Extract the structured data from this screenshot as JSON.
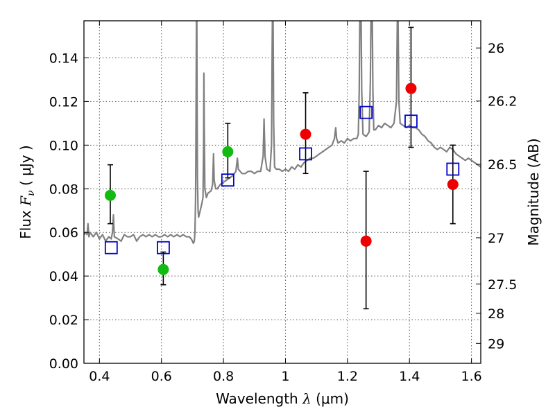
{
  "chart_data": {
    "type": "scatter",
    "xlabel": "Wavelength  λ (μm)",
    "ylabel": "Flux  F_ν  ( μJy )",
    "ylabel_right": "Magnitude (AB)",
    "xlim": [
      0.35,
      1.63
    ],
    "ylim": [
      0.0,
      0.157
    ],
    "grid": true,
    "x_ticks": [
      {
        "value": 0.4,
        "label": "0.4"
      },
      {
        "value": 0.6,
        "label": "0.6"
      },
      {
        "value": 0.8,
        "label": "0.8"
      },
      {
        "value": 1.0,
        "label": "1"
      },
      {
        "value": 1.2,
        "label": "1.2"
      },
      {
        "value": 1.4,
        "label": "1.4"
      },
      {
        "value": 1.6,
        "label": "1.6"
      }
    ],
    "y_ticks": [
      {
        "value": 0.0,
        "label": "0.00"
      },
      {
        "value": 0.02,
        "label": "0.02"
      },
      {
        "value": 0.04,
        "label": "0.04"
      },
      {
        "value": 0.06,
        "label": "0.06"
      },
      {
        "value": 0.08,
        "label": "0.08"
      },
      {
        "value": 0.1,
        "label": "0.10"
      },
      {
        "value": 0.12,
        "label": "0.12"
      },
      {
        "value": 0.14,
        "label": "0.14"
      }
    ],
    "right_ticks": [
      {
        "mag": 26,
        "label": "26"
      },
      {
        "mag": 26.2,
        "label": "26.2"
      },
      {
        "mag": 26.5,
        "label": "26.5"
      },
      {
        "mag": 27,
        "label": "27"
      },
      {
        "mag": 27.5,
        "label": "27.5"
      },
      {
        "mag": 28,
        "label": "28"
      },
      {
        "mag": 29,
        "label": "29"
      }
    ],
    "colors": {
      "spectrum": "#808080",
      "green": "#11bb11",
      "red": "#ee0000",
      "model": "#0000cc",
      "errorbar": "#000000",
      "grid": "#555555"
    },
    "points_green": [
      {
        "x": 0.435,
        "y": 0.077,
        "err_low": 0.064,
        "err_high": 0.091
      },
      {
        "x": 0.606,
        "y": 0.043,
        "err_low": 0.036,
        "err_high": 0.051
      },
      {
        "x": 0.814,
        "y": 0.097,
        "err_low": 0.085,
        "err_high": 0.11
      }
    ],
    "points_red": [
      {
        "x": 1.065,
        "y": 0.105,
        "err_low": 0.087,
        "err_high": 0.124
      },
      {
        "x": 1.26,
        "y": 0.056,
        "err_low": 0.025,
        "err_high": 0.088
      },
      {
        "x": 1.405,
        "y": 0.126,
        "err_low": 0.099,
        "err_high": 0.154
      },
      {
        "x": 1.54,
        "y": 0.082,
        "err_low": 0.064,
        "err_high": 0.1
      }
    ],
    "points_model": [
      {
        "x": 0.438,
        "y": 0.053
      },
      {
        "x": 0.606,
        "y": 0.053
      },
      {
        "x": 0.814,
        "y": 0.084
      },
      {
        "x": 1.065,
        "y": 0.096
      },
      {
        "x": 1.26,
        "y": 0.115
      },
      {
        "x": 1.405,
        "y": 0.111
      },
      {
        "x": 1.54,
        "y": 0.089
      }
    ],
    "spectrum": [
      [
        0.35,
        0.059
      ],
      [
        0.355,
        0.06
      ],
      [
        0.36,
        0.059
      ],
      [
        0.363,
        0.064
      ],
      [
        0.366,
        0.058
      ],
      [
        0.37,
        0.06
      ],
      [
        0.38,
        0.058
      ],
      [
        0.39,
        0.06
      ],
      [
        0.4,
        0.057
      ],
      [
        0.41,
        0.059
      ],
      [
        0.42,
        0.056
      ],
      [
        0.43,
        0.058
      ],
      [
        0.438,
        0.057
      ],
      [
        0.442,
        0.06
      ],
      [
        0.445,
        0.068
      ],
      [
        0.448,
        0.058
      ],
      [
        0.46,
        0.057
      ],
      [
        0.47,
        0.056
      ],
      [
        0.48,
        0.059
      ],
      [
        0.49,
        0.058
      ],
      [
        0.5,
        0.058
      ],
      [
        0.51,
        0.059
      ],
      [
        0.52,
        0.056
      ],
      [
        0.53,
        0.058
      ],
      [
        0.54,
        0.059
      ],
      [
        0.55,
        0.058
      ],
      [
        0.56,
        0.059
      ],
      [
        0.57,
        0.058
      ],
      [
        0.58,
        0.059
      ],
      [
        0.59,
        0.058
      ],
      [
        0.6,
        0.058
      ],
      [
        0.61,
        0.059
      ],
      [
        0.62,
        0.058
      ],
      [
        0.63,
        0.059
      ],
      [
        0.64,
        0.058
      ],
      [
        0.65,
        0.059
      ],
      [
        0.66,
        0.058
      ],
      [
        0.67,
        0.059
      ],
      [
        0.68,
        0.058
      ],
      [
        0.69,
        0.058
      ],
      [
        0.696,
        0.057
      ],
      [
        0.7,
        0.056
      ],
      [
        0.703,
        0.055
      ],
      [
        0.706,
        0.056
      ],
      [
        0.708,
        0.06
      ],
      [
        0.71,
        0.075
      ],
      [
        0.711,
        0.095
      ],
      [
        0.712,
        0.13
      ],
      [
        0.713,
        0.16
      ],
      [
        0.714,
        0.16
      ],
      [
        0.715,
        0.12
      ],
      [
        0.716,
        0.085
      ],
      [
        0.718,
        0.07
      ],
      [
        0.72,
        0.067
      ],
      [
        0.725,
        0.07
      ],
      [
        0.73,
        0.073
      ],
      [
        0.734,
        0.076
      ],
      [
        0.736,
        0.1
      ],
      [
        0.737,
        0.133
      ],
      [
        0.738,
        0.11
      ],
      [
        0.74,
        0.08
      ],
      [
        0.745,
        0.076
      ],
      [
        0.75,
        0.078
      ],
      [
        0.76,
        0.079
      ],
      [
        0.765,
        0.082
      ],
      [
        0.768,
        0.096
      ],
      [
        0.77,
        0.084
      ],
      [
        0.775,
        0.08
      ],
      [
        0.78,
        0.08
      ],
      [
        0.79,
        0.082
      ],
      [
        0.8,
        0.083
      ],
      [
        0.81,
        0.084
      ],
      [
        0.82,
        0.085
      ],
      [
        0.83,
        0.086
      ],
      [
        0.84,
        0.088
      ],
      [
        0.845,
        0.094
      ],
      [
        0.848,
        0.089
      ],
      [
        0.86,
        0.087
      ],
      [
        0.87,
        0.087
      ],
      [
        0.88,
        0.088
      ],
      [
        0.89,
        0.088
      ],
      [
        0.9,
        0.087
      ],
      [
        0.91,
        0.088
      ],
      [
        0.92,
        0.088
      ],
      [
        0.928,
        0.095
      ],
      [
        0.931,
        0.112
      ],
      [
        0.934,
        0.095
      ],
      [
        0.94,
        0.089
      ],
      [
        0.95,
        0.088
      ],
      [
        0.955,
        0.1
      ],
      [
        0.957,
        0.145
      ],
      [
        0.958,
        0.16
      ],
      [
        0.96,
        0.16
      ],
      [
        0.962,
        0.11
      ],
      [
        0.965,
        0.09
      ],
      [
        0.97,
        0.089
      ],
      [
        0.98,
        0.089
      ],
      [
        0.99,
        0.088
      ],
      [
        1.0,
        0.089
      ],
      [
        1.01,
        0.088
      ],
      [
        1.02,
        0.09
      ],
      [
        1.03,
        0.089
      ],
      [
        1.04,
        0.091
      ],
      [
        1.05,
        0.09
      ],
      [
        1.06,
        0.092
      ],
      [
        1.07,
        0.093
      ],
      [
        1.08,
        0.094
      ],
      [
        1.09,
        0.094
      ],
      [
        1.1,
        0.095
      ],
      [
        1.11,
        0.096
      ],
      [
        1.12,
        0.097
      ],
      [
        1.13,
        0.098
      ],
      [
        1.14,
        0.099
      ],
      [
        1.15,
        0.1
      ],
      [
        1.158,
        0.103
      ],
      [
        1.162,
        0.108
      ],
      [
        1.165,
        0.103
      ],
      [
        1.17,
        0.101
      ],
      [
        1.18,
        0.102
      ],
      [
        1.19,
        0.101
      ],
      [
        1.2,
        0.103
      ],
      [
        1.21,
        0.102
      ],
      [
        1.22,
        0.103
      ],
      [
        1.23,
        0.103
      ],
      [
        1.235,
        0.105
      ],
      [
        1.238,
        0.125
      ],
      [
        1.24,
        0.16
      ],
      [
        1.244,
        0.16
      ],
      [
        1.246,
        0.125
      ],
      [
        1.25,
        0.105
      ],
      [
        1.26,
        0.104
      ],
      [
        1.27,
        0.106
      ],
      [
        1.274,
        0.13
      ],
      [
        1.276,
        0.16
      ],
      [
        1.28,
        0.16
      ],
      [
        1.282,
        0.125
      ],
      [
        1.285,
        0.107
      ],
      [
        1.29,
        0.107
      ],
      [
        1.3,
        0.109
      ],
      [
        1.31,
        0.108
      ],
      [
        1.32,
        0.11
      ],
      [
        1.33,
        0.109
      ],
      [
        1.34,
        0.108
      ],
      [
        1.35,
        0.11
      ],
      [
        1.358,
        0.12
      ],
      [
        1.361,
        0.16
      ],
      [
        1.363,
        0.16
      ],
      [
        1.366,
        0.12
      ],
      [
        1.37,
        0.11
      ],
      [
        1.38,
        0.109
      ],
      [
        1.39,
        0.108
      ],
      [
        1.4,
        0.109
      ],
      [
        1.41,
        0.108
      ],
      [
        1.42,
        0.108
      ],
      [
        1.43,
        0.107
      ],
      [
        1.44,
        0.105
      ],
      [
        1.45,
        0.104
      ],
      [
        1.46,
        0.102
      ],
      [
        1.47,
        0.101
      ],
      [
        1.48,
        0.099
      ],
      [
        1.49,
        0.098
      ],
      [
        1.5,
        0.099
      ],
      [
        1.51,
        0.098
      ],
      [
        1.52,
        0.097
      ],
      [
        1.53,
        0.099
      ],
      [
        1.54,
        0.098
      ],
      [
        1.55,
        0.096
      ],
      [
        1.56,
        0.095
      ],
      [
        1.57,
        0.094
      ],
      [
        1.58,
        0.093
      ],
      [
        1.59,
        0.094
      ],
      [
        1.6,
        0.093
      ],
      [
        1.61,
        0.092
      ],
      [
        1.62,
        0.091
      ],
      [
        1.63,
        0.09
      ]
    ]
  }
}
